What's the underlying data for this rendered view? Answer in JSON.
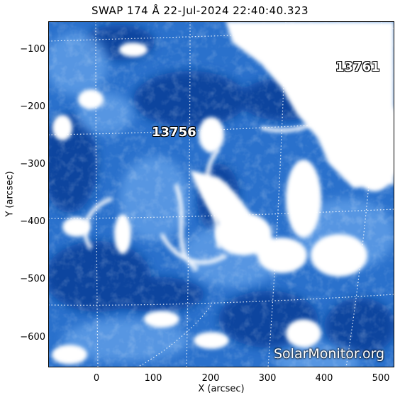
{
  "title": "SWAP 174 Å 22-Jul-2024 22:40:40.323",
  "x_axis": {
    "label": "X (arcsec)",
    "ticks": [
      "0",
      "100",
      "200",
      "300",
      "400",
      "500"
    ]
  },
  "y_axis": {
    "label": "Y (arcsec)",
    "ticks": [
      "−100",
      "−200",
      "−300",
      "−400",
      "−500",
      "−600"
    ]
  },
  "active_regions": [
    "13756",
    "13761"
  ],
  "watermark": "SolarMonitor.org",
  "colors": {
    "deep_blue": "#0b3f9a",
    "mid_blue": "#1f66c4",
    "light_blue": "#6aa6ea",
    "white": "#ffffff"
  }
}
